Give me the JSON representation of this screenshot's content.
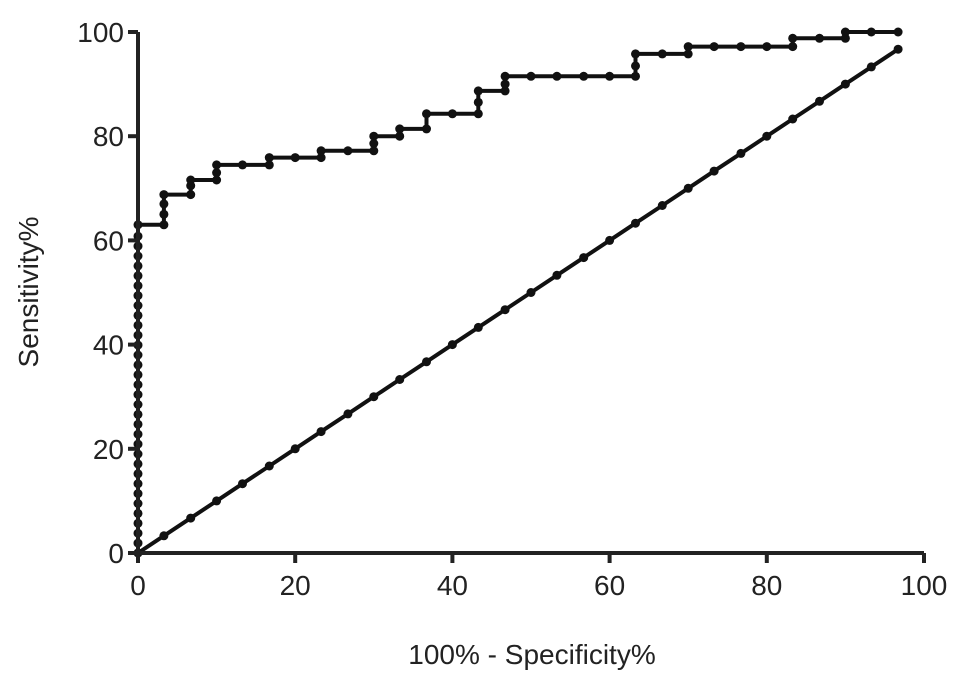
{
  "chart_data": {
    "type": "line",
    "title": "",
    "xlabel": "100% - Specificity%",
    "ylabel": "Sensitivity%",
    "xlim": [
      0,
      100
    ],
    "ylim": [
      0,
      100
    ],
    "x_ticks": [
      "0",
      "20",
      "40",
      "60",
      "80",
      "100"
    ],
    "y_ticks": [
      "0",
      "20",
      "40",
      "60",
      "80",
      "100"
    ],
    "grid": false,
    "legend": "none",
    "colors": {
      "line": "#111111",
      "axis": "#222222",
      "background": "#ffffff"
    },
    "series": [
      {
        "x": [
          0,
          0,
          0,
          0,
          0,
          0,
          0,
          0,
          0,
          0,
          0,
          0,
          0,
          0,
          0,
          0,
          0,
          0,
          0,
          0,
          0,
          0,
          0,
          0,
          0,
          0,
          0,
          0,
          0,
          0,
          0,
          0,
          0,
          0,
          3.3,
          3.3,
          3.3,
          3.3,
          6.7,
          6.7,
          6.7,
          10,
          10,
          10,
          13.3,
          16.7,
          16.7,
          20,
          23.3,
          23.3,
          26.7,
          30,
          30,
          30,
          33.3,
          33.3,
          36.7,
          36.7,
          40,
          43.3,
          43.3,
          43.3,
          46.7,
          46.7,
          46.7,
          50,
          53.3,
          56.7,
          60,
          63.3,
          63.3,
          63.3,
          66.7,
          70,
          70,
          73.3,
          76.7,
          80,
          83.3,
          83.3,
          86.7,
          90,
          90,
          93.3,
          96.7
        ],
        "y": [
          0,
          1.9,
          3.8,
          5.7,
          7.6,
          9.5,
          11.4,
          13.3,
          15.2,
          17.1,
          19,
          20.9,
          22.8,
          24.7,
          26.6,
          28.5,
          30.4,
          32.3,
          34.2,
          36.1,
          38,
          39.9,
          41.8,
          43.7,
          45.6,
          47.5,
          49.4,
          51.3,
          53.2,
          55.1,
          57,
          58.9,
          60.8,
          63,
          63,
          65,
          67,
          68.8,
          68.8,
          70.5,
          71.6,
          71.6,
          73,
          74.5,
          74.5,
          74.5,
          75.9,
          75.9,
          75.9,
          77.2,
          77.2,
          77.2,
          78.6,
          80,
          80,
          81.4,
          81.4,
          84.3,
          84.3,
          84.3,
          86.5,
          88.7,
          88.7,
          90,
          91.5,
          91.5,
          91.5,
          91.5,
          91.5,
          91.5,
          93.5,
          95.8,
          95.8,
          95.8,
          97.2,
          97.2,
          97.2,
          97.2,
          97.2,
          98.8,
          98.8,
          98.8,
          100,
          100,
          100
        ]
      },
      {
        "x": [
          0,
          3.3,
          6.7,
          10,
          13.3,
          16.7,
          20,
          23.3,
          26.7,
          30,
          33.3,
          36.7,
          40,
          43.3,
          46.7,
          50,
          53.3,
          56.7,
          60,
          63.3,
          66.7,
          70,
          73.3,
          76.7,
          80,
          83.3,
          86.7,
          90,
          93.3,
          96.7
        ],
        "y": [
          0,
          3.3,
          6.7,
          10,
          13.3,
          16.7,
          20,
          23.3,
          26.7,
          30,
          33.3,
          36.7,
          40,
          43.3,
          46.7,
          50,
          53.3,
          56.7,
          60,
          63.3,
          66.7,
          70,
          73.3,
          76.7,
          80,
          83.3,
          86.7,
          90,
          93.3,
          96.7
        ]
      }
    ]
  }
}
